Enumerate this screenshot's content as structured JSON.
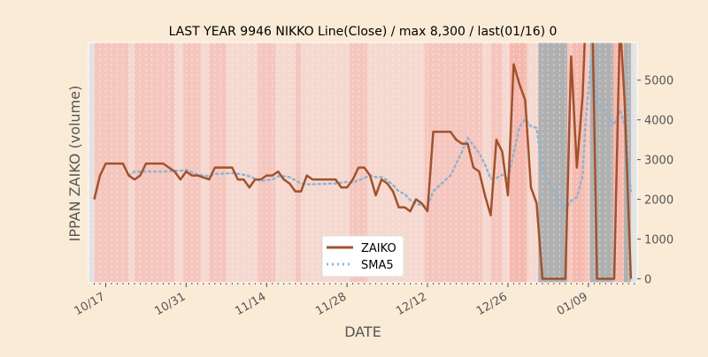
{
  "chart_data": {
    "type": "line",
    "title": "LAST YEAR 9946 NIKKO Line(Close) / max 8,300 / last(01/16) 0",
    "xlabel": "DATE",
    "ylabel": "IPPAN ZAIKO (volume)",
    "ylim": [
      -100,
      5950
    ],
    "xlim_days_from_1015": [
      -1,
      94.5
    ],
    "yticks": [
      0,
      1000,
      2000,
      3000,
      4000,
      5000
    ],
    "xticks": [
      {
        "day": 2,
        "label": "10/17"
      },
      {
        "day": 16,
        "label": "10/31"
      },
      {
        "day": 30,
        "label": "11/14"
      },
      {
        "day": 44,
        "label": "11/28"
      },
      {
        "day": 58,
        "label": "12/12"
      },
      {
        "day": 72,
        "label": "12/26"
      },
      {
        "day": 86,
        "label": "01/09"
      }
    ],
    "legend": "lower-center",
    "series": [
      {
        "name": "ZAIKO",
        "color": "#a0522d",
        "style": "solid",
        "x": [
          0,
          1,
          2,
          5,
          6,
          7,
          8,
          9,
          12,
          14,
          15,
          16,
          17,
          18,
          20,
          21,
          24,
          25,
          26,
          27,
          28,
          29,
          30,
          31,
          32,
          33,
          34,
          35,
          36,
          37,
          38,
          42,
          43,
          44,
          45,
          46,
          47,
          48,
          49,
          50,
          51,
          52,
          53,
          54,
          55,
          56,
          57,
          58,
          59,
          62,
          63,
          64,
          65,
          66,
          67,
          68,
          69,
          70,
          71,
          72,
          73,
          74,
          75,
          76,
          77,
          78,
          82,
          83,
          84,
          85,
          85.5,
          86.5,
          87.5,
          90.5,
          91.5,
          92.3,
          93.4
        ],
        "values": [
          2000,
          2600,
          2900,
          2900,
          2600,
          2500,
          2600,
          2900,
          2900,
          2700,
          2500,
          2700,
          2600,
          2600,
          2500,
          2800,
          2800,
          2500,
          2500,
          2300,
          2500,
          2500,
          2600,
          2600,
          2700,
          2500,
          2400,
          2200,
          2200,
          2600,
          2500,
          2500,
          2300,
          2300,
          2500,
          2800,
          2800,
          2600,
          2100,
          2500,
          2400,
          2200,
          1800,
          1800,
          1700,
          2000,
          1900,
          1700,
          3700,
          3700,
          3500,
          3400,
          3400,
          2800,
          2700,
          2100,
          1600,
          3500,
          3200,
          2100,
          5400,
          4900,
          4500,
          2300,
          1900,
          0,
          0,
          5600,
          2800,
          4600,
          6500,
          8300,
          0,
          0,
          6500,
          4500,
          0
        ]
      },
      {
        "name": "SMA5",
        "color": "#8fb4cf",
        "style": "dotted",
        "window": 5
      }
    ],
    "background_bands": [
      {
        "from": -1,
        "to": 0,
        "color": "#e2e2e2"
      },
      {
        "from": 0,
        "to": 6,
        "color": "#f5c6be"
      },
      {
        "from": 6,
        "to": 7,
        "color": "#f5d8d0"
      },
      {
        "from": 7,
        "to": 14,
        "color": "#f5c6be"
      },
      {
        "from": 14,
        "to": 15.5,
        "color": "#f5d8d0"
      },
      {
        "from": 15.5,
        "to": 18.5,
        "color": "#f5c6be"
      },
      {
        "from": 18.5,
        "to": 20,
        "color": "#f5d8d0"
      },
      {
        "from": 20,
        "to": 23,
        "color": "#f5c6be"
      },
      {
        "from": 23,
        "to": 28.5,
        "color": "#f5d8d0"
      },
      {
        "from": 28.5,
        "to": 31.5,
        "color": "#f5c6be"
      },
      {
        "from": 31.5,
        "to": 35,
        "color": "#f5d8d0"
      },
      {
        "from": 35,
        "to": 36,
        "color": "#f5c6be"
      },
      {
        "from": 36,
        "to": 44.5,
        "color": "#f5d8d0"
      },
      {
        "from": 44.5,
        "to": 47.5,
        "color": "#f5c6be"
      },
      {
        "from": 47.5,
        "to": 57.5,
        "color": "#f5d8d0"
      },
      {
        "from": 57.5,
        "to": 67.5,
        "color": "#f5c6be"
      },
      {
        "from": 67.5,
        "to": 69,
        "color": "#f5d8d0"
      },
      {
        "from": 69,
        "to": 71,
        "color": "#f5c6be"
      },
      {
        "from": 71,
        "to": 72.3,
        "color": "#f5d8d0"
      },
      {
        "from": 72.3,
        "to": 75.3,
        "color": "#f5b9af"
      },
      {
        "from": 75.3,
        "to": 77.3,
        "color": "#f5d8d0"
      },
      {
        "from": 77.3,
        "to": 82.3,
        "color": "#b0b0b0"
      },
      {
        "from": 82.3,
        "to": 83.3,
        "color": "#f5c6be"
      },
      {
        "from": 83.3,
        "to": 85.3,
        "color": "#f5b9af"
      },
      {
        "from": 85.3,
        "to": 86.3,
        "color": "#f5c6be"
      },
      {
        "from": 86.3,
        "to": 90.3,
        "color": "#b0b0b0"
      },
      {
        "from": 90.3,
        "to": 92.2,
        "color": "#f5b9af"
      },
      {
        "from": 92.2,
        "to": 93.4,
        "color": "#b0b0b0"
      },
      {
        "from": 93.4,
        "to": 94.5,
        "color": "#e2e2e2"
      }
    ]
  }
}
